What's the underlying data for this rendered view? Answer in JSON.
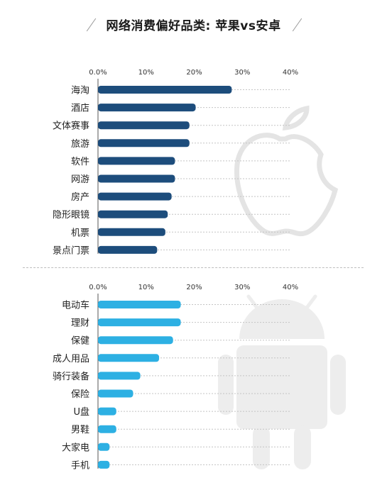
{
  "title": "网络消费偏好品类: 苹果vs安卓",
  "chart_data": [
    {
      "type": "bar",
      "orientation": "horizontal",
      "name": "苹果",
      "color": "#1d4d7c",
      "categories": [
        "海淘",
        "酒店",
        "文体赛事",
        "旅游",
        "软件",
        "网游",
        "房产",
        "隐形眼镜",
        "机票",
        "景点门票"
      ],
      "values": [
        27.8,
        20.3,
        19.0,
        19.0,
        16.0,
        16.0,
        15.3,
        14.5,
        14.0,
        12.3
      ],
      "xlim": [
        0,
        40
      ],
      "ticks": [
        "0.0%",
        "10%",
        "20%",
        "30%",
        "40%"
      ],
      "background_icon": "apple-logo"
    },
    {
      "type": "bar",
      "orientation": "horizontal",
      "name": "安卓",
      "color": "#2db0e3",
      "categories": [
        "电动车",
        "理财",
        "保健",
        "成人用品",
        "骑行装备",
        "保险",
        "U盘",
        "男鞋",
        "大家电",
        "手机"
      ],
      "values": [
        17.2,
        17.2,
        15.6,
        12.7,
        8.8,
        7.3,
        3.8,
        3.8,
        2.4,
        2.4
      ],
      "xlim": [
        0,
        40
      ],
      "ticks": [
        "0.0%",
        "10%",
        "20%",
        "30%",
        "40%"
      ],
      "background_icon": "android-robot"
    }
  ]
}
